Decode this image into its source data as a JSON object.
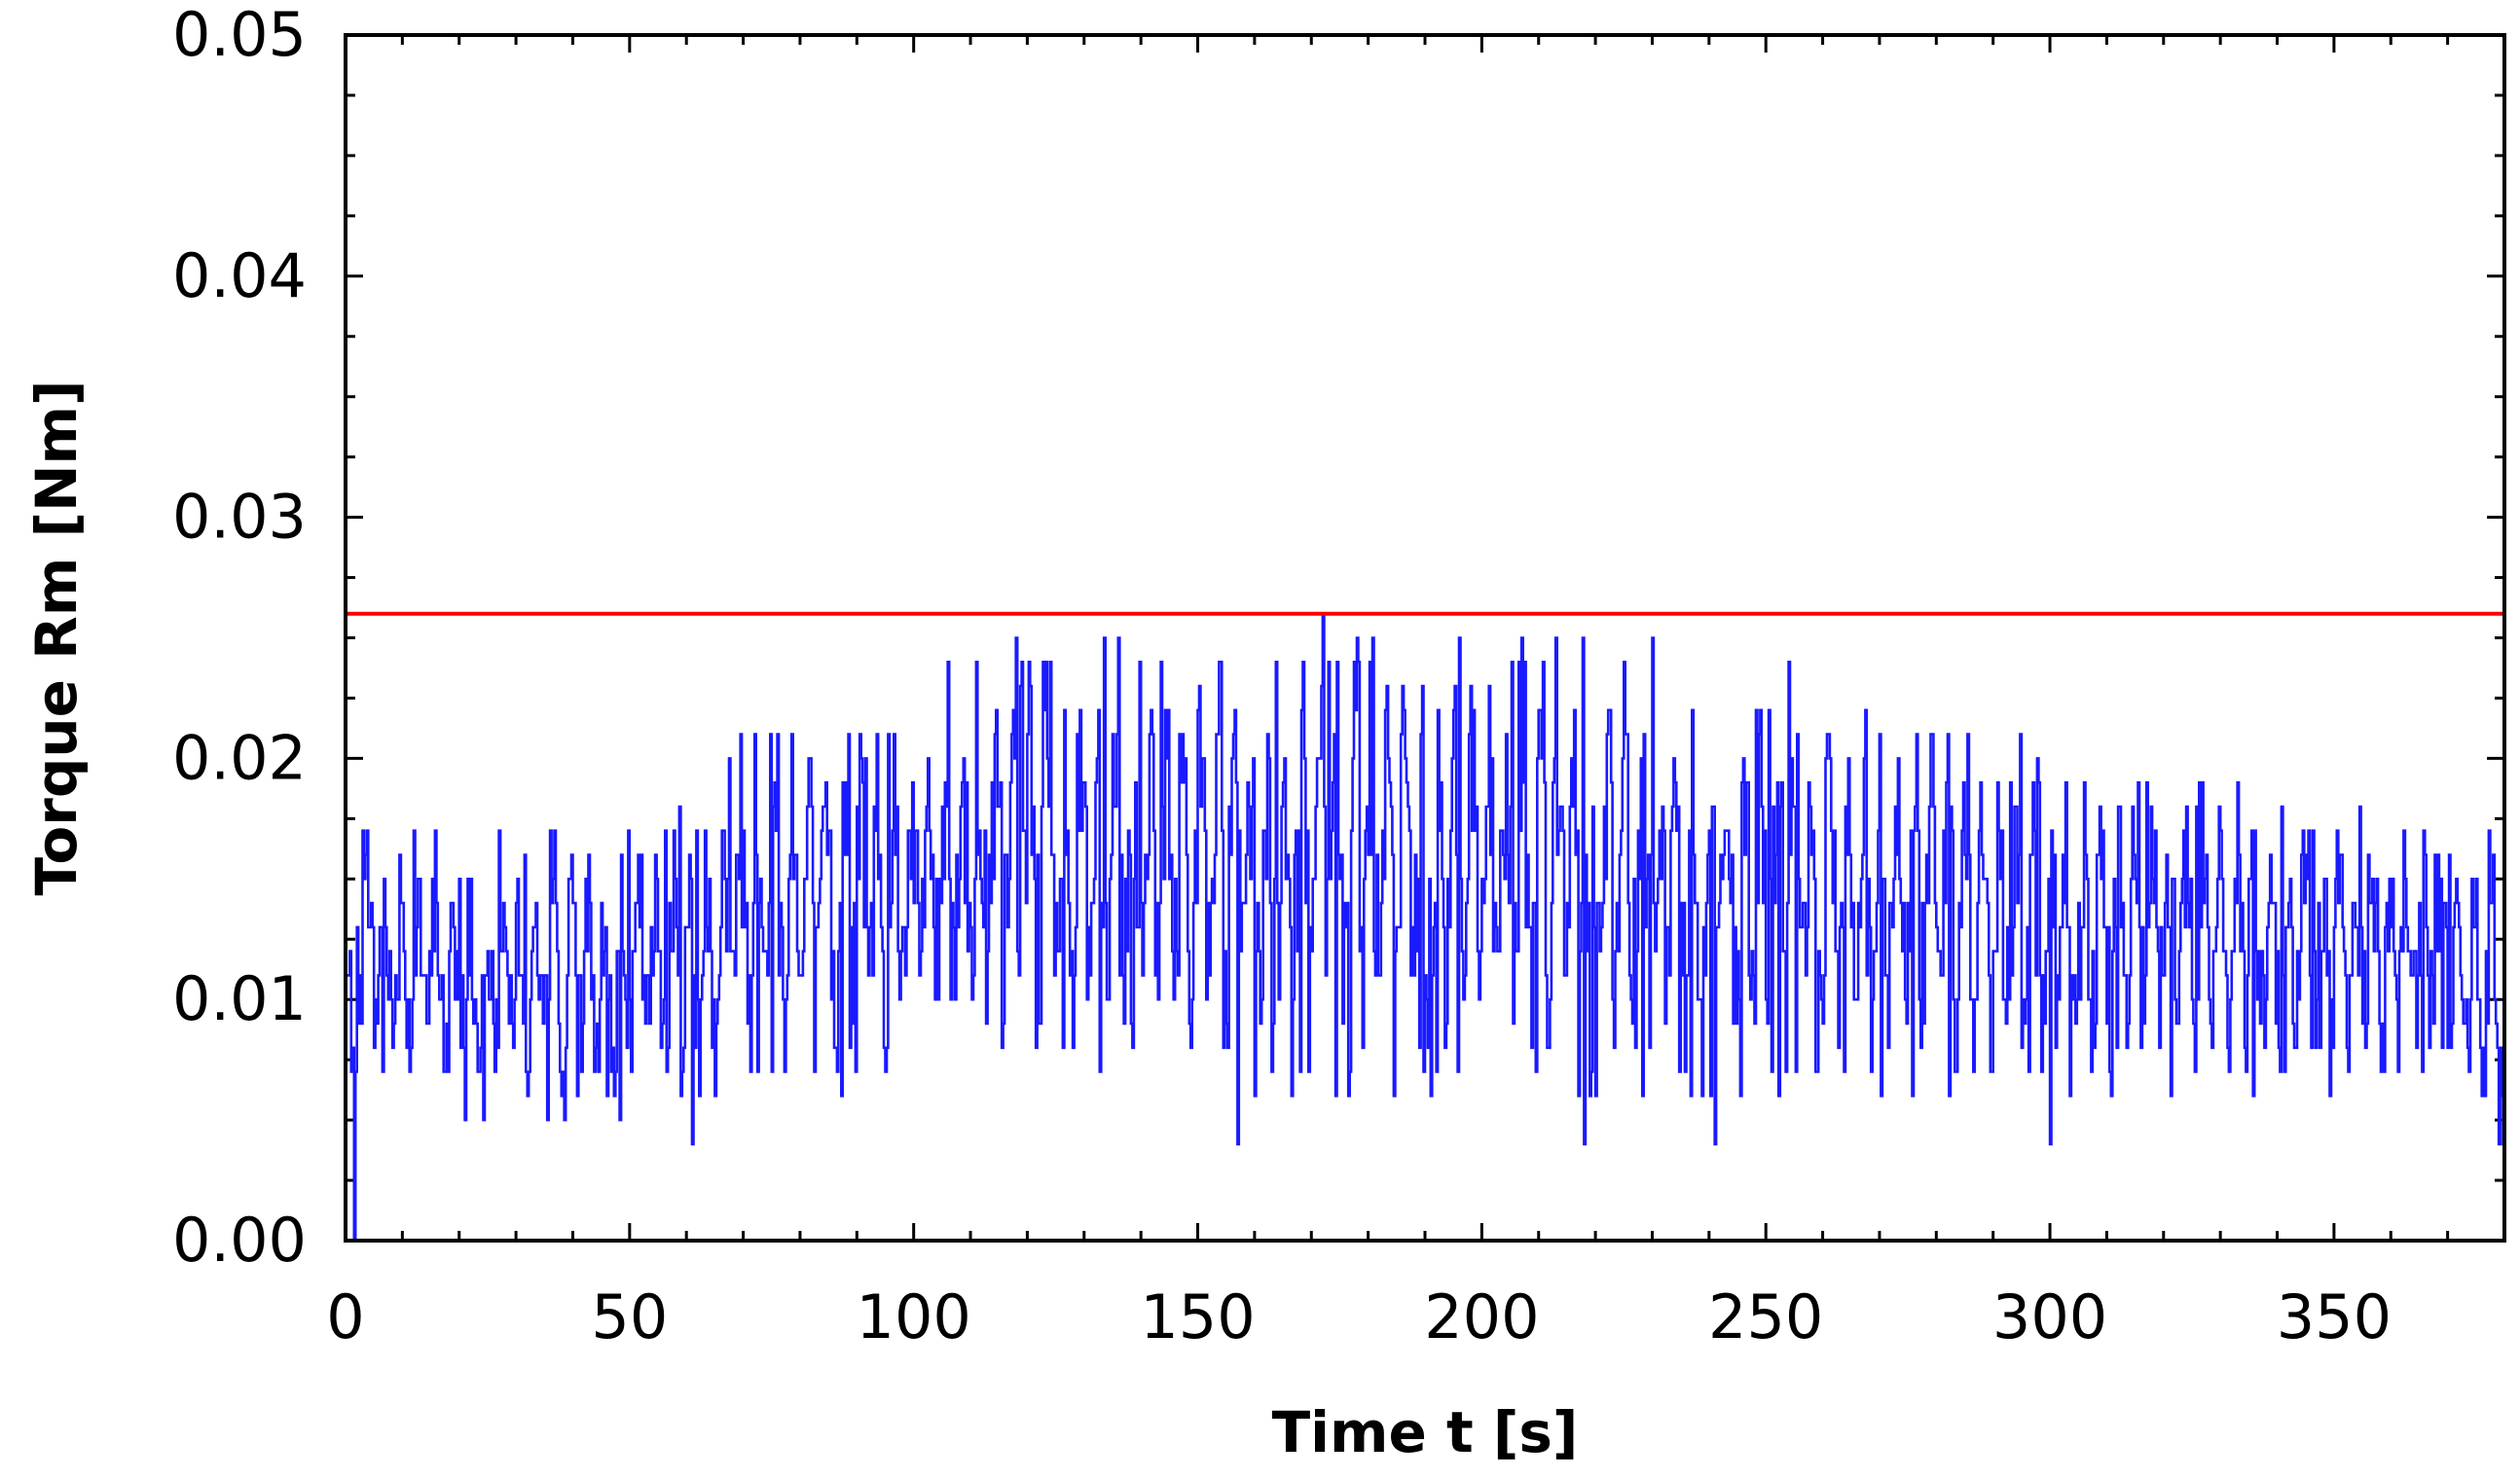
{
  "chart_data": {
    "type": "line",
    "title": "",
    "xlabel": "Time t [s]",
    "ylabel": "Torque Rm [Nm]",
    "xlim": [
      0,
      380
    ],
    "ylim": [
      0,
      0.05
    ],
    "x_ticks": [
      0,
      50,
      100,
      150,
      200,
      250,
      300,
      350
    ],
    "x_tick_labels": [
      "0",
      "50",
      "100",
      "150",
      "200",
      "250",
      "300",
      "350"
    ],
    "y_ticks": [
      0,
      0.01,
      0.02,
      0.03,
      0.04,
      0.05
    ],
    "y_tick_labels": [
      "0.00",
      "0.01",
      "0.02",
      "0.03",
      "0.04",
      "0.05"
    ],
    "grid": false,
    "colors": {
      "measured": "#1a1aff",
      "limit": "#ff0000"
    },
    "limit_line": {
      "y": 0.026
    },
    "series": [
      {
        "style": "stepped",
        "envelope": {
          "t": [
            0,
            1,
            2,
            5,
            20,
            40,
            60,
            70,
            80,
            90,
            100,
            110,
            120,
            130,
            140,
            150,
            160,
            172,
            180,
            190,
            200,
            210,
            220,
            230,
            240,
            250,
            260,
            270,
            280,
            290,
            300,
            310,
            320,
            330,
            340,
            350,
            360,
            370,
            380
          ],
          "min": [
            0.01,
            0.0,
            0.008,
            0.006,
            0.005,
            0.005,
            0.005,
            0.006,
            0.006,
            0.006,
            0.007,
            0.007,
            0.007,
            0.007,
            0.007,
            0.007,
            0.005,
            0.006,
            0.006,
            0.006,
            0.006,
            0.006,
            0.005,
            0.006,
            0.005,
            0.006,
            0.006,
            0.006,
            0.006,
            0.006,
            0.005,
            0.006,
            0.006,
            0.006,
            0.006,
            0.006,
            0.006,
            0.006,
            0.004
          ],
          "max": [
            0.012,
            0.014,
            0.018,
            0.018,
            0.017,
            0.017,
            0.018,
            0.021,
            0.022,
            0.022,
            0.023,
            0.024,
            0.025,
            0.025,
            0.025,
            0.025,
            0.024,
            0.026,
            0.025,
            0.025,
            0.025,
            0.025,
            0.025,
            0.025,
            0.024,
            0.024,
            0.023,
            0.022,
            0.022,
            0.021,
            0.021,
            0.02,
            0.02,
            0.019,
            0.019,
            0.018,
            0.018,
            0.017,
            0.017
          ]
        },
        "peaks": [
          {
            "t": 1.5,
            "y": 0.0
          },
          {
            "t": 61,
            "y": 0.004
          },
          {
            "t": 106,
            "y": 0.024
          },
          {
            "t": 118,
            "y": 0.025
          },
          {
            "t": 136,
            "y": 0.025
          },
          {
            "t": 157,
            "y": 0.004
          },
          {
            "t": 172,
            "y": 0.026
          },
          {
            "t": 196,
            "y": 0.025
          },
          {
            "t": 213,
            "y": 0.025
          },
          {
            "t": 218,
            "y": 0.004
          },
          {
            "t": 230,
            "y": 0.025
          },
          {
            "t": 241,
            "y": 0.004
          },
          {
            "t": 254,
            "y": 0.024
          },
          {
            "t": 300,
            "y": 0.004
          },
          {
            "t": 379,
            "y": 0.004
          }
        ]
      }
    ]
  }
}
